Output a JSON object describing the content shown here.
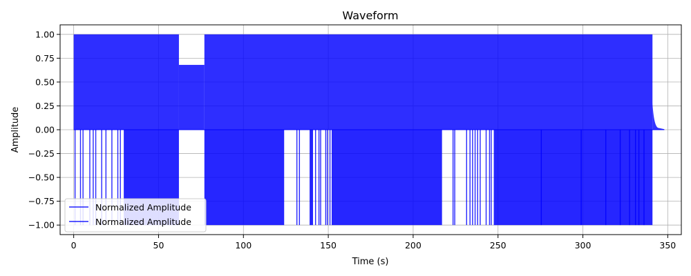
{
  "chart_data": {
    "type": "line",
    "title": "Waveform",
    "xlabel": "Time (s)",
    "ylabel": "Amplitude",
    "xlim": [
      -8,
      358
    ],
    "ylim": [
      -1.1,
      1.1
    ],
    "x_ticks": [
      0,
      50,
      100,
      150,
      200,
      250,
      300,
      350
    ],
    "y_ticks": [
      -1.0,
      -0.75,
      -0.5,
      -0.25,
      0.0,
      0.25,
      0.5,
      0.75,
      1.0
    ],
    "x_tick_labels": [
      "0",
      "50",
      "100",
      "150",
      "200",
      "250",
      "300",
      "350"
    ],
    "y_tick_labels": [
      "−1.00",
      "−0.75",
      "−0.50",
      "−0.25",
      "0.00",
      "0.25",
      "0.50",
      "0.75",
      "1.00"
    ],
    "grid": true,
    "legend_placement": "lower-left",
    "legend": [
      "Normalized Amplitude",
      "Normalized Amplitude"
    ],
    "series_color": "#0000ff",
    "envelope": {
      "upper": [
        {
          "t0": 0,
          "t1": 62,
          "max": 1.0
        },
        {
          "t0": 62,
          "t1": 77,
          "max": 0.68
        },
        {
          "t0": 77,
          "t1": 341,
          "max": 1.0
        },
        {
          "t0": 341,
          "t1": 348,
          "max": 0.02
        }
      ],
      "lower_full": [
        {
          "t0": 29.5,
          "t1": 62
        },
        {
          "t0": 77,
          "t1": 124
        },
        {
          "t0": 139,
          "t1": 141
        },
        {
          "t0": 152,
          "t1": 217
        },
        {
          "t0": 247.5,
          "t1": 341
        }
      ],
      "lower_spikes": [
        0.8,
        4,
        5.5,
        9.5,
        11.5,
        13,
        16.5,
        19,
        22.5,
        26,
        27.5,
        131.5,
        133,
        142.5,
        144.5,
        145.5,
        148.5,
        149.5,
        151,
        223.5,
        224.5,
        231.5,
        233.5,
        235,
        236.5,
        238,
        239.5,
        243,
        245,
        246,
        275.5,
        299,
        313.5,
        322,
        327.5,
        331,
        333,
        336
      ]
    }
  }
}
